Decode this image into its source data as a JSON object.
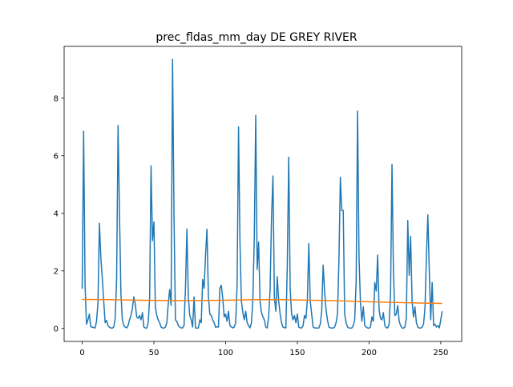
{
  "chart_data": {
    "type": "line",
    "title": "prec_fldas_mm_day DE GREY RIVER",
    "xlabel": "",
    "ylabel": "",
    "xlim": [
      -12.6,
      264.6
    ],
    "ylim": [
      -0.45,
      9.8
    ],
    "xticks": [
      0,
      50,
      100,
      150,
      200,
      250
    ],
    "yticks": [
      0,
      2,
      4,
      6,
      8
    ],
    "grid": false,
    "legend": "none",
    "series": [
      {
        "color": "#1f77b4",
        "points": [
          [
            0,
            1.38
          ],
          [
            1,
            6.85
          ],
          [
            2,
            1.5
          ],
          [
            3,
            0.15
          ],
          [
            4,
            0.3
          ],
          [
            5,
            0.5
          ],
          [
            6,
            0.06
          ],
          [
            7,
            0.05
          ],
          [
            8,
            0.03
          ],
          [
            9,
            0.02
          ],
          [
            10,
            0.25
          ],
          [
            11,
            0.9
          ],
          [
            12,
            3.65
          ],
          [
            13,
            2.45
          ],
          [
            14,
            1.75
          ],
          [
            15,
            0.95
          ],
          [
            16,
            0.2
          ],
          [
            17,
            0.28
          ],
          [
            18,
            0.1
          ],
          [
            19,
            0.04
          ],
          [
            20,
            0.02
          ],
          [
            21,
            0.01
          ],
          [
            22,
            0.05
          ],
          [
            23,
            0.35
          ],
          [
            24,
            1.7
          ],
          [
            25,
            7.05
          ],
          [
            26,
            4.0
          ],
          [
            27,
            1.2
          ],
          [
            28,
            0.3
          ],
          [
            29,
            0.1
          ],
          [
            30,
            0.05
          ],
          [
            31,
            0.02
          ],
          [
            32,
            0.1
          ],
          [
            33,
            0.3
          ],
          [
            34,
            0.45
          ],
          [
            35,
            0.7
          ],
          [
            36,
            1.1
          ],
          [
            37,
            0.85
          ],
          [
            38,
            0.4
          ],
          [
            39,
            0.35
          ],
          [
            40,
            0.45
          ],
          [
            41,
            0.3
          ],
          [
            42,
            0.55
          ],
          [
            43,
            0.05
          ],
          [
            44,
            0.02
          ],
          [
            45,
            0.01
          ],
          [
            46,
            0.2
          ],
          [
            47,
            1.0
          ],
          [
            48,
            5.65
          ],
          [
            49,
            3.05
          ],
          [
            50,
            3.7
          ],
          [
            51,
            0.75
          ],
          [
            52,
            0.45
          ],
          [
            53,
            0.3
          ],
          [
            54,
            0.2
          ],
          [
            55,
            0.05
          ],
          [
            56,
            0.02
          ],
          [
            57,
            0.01
          ],
          [
            58,
            0.05
          ],
          [
            59,
            0.2
          ],
          [
            60,
            0.85
          ],
          [
            61,
            1.35
          ],
          [
            62,
            0.8
          ],
          [
            63,
            9.35
          ],
          [
            64,
            4.0
          ],
          [
            65,
            0.3
          ],
          [
            66,
            0.25
          ],
          [
            67,
            0.1
          ],
          [
            68,
            0.05
          ],
          [
            69,
            0.02
          ],
          [
            70,
            0.02
          ],
          [
            71,
            0.1
          ],
          [
            72,
            1.4
          ],
          [
            73,
            3.45
          ],
          [
            74,
            1.1
          ],
          [
            75,
            0.45
          ],
          [
            76,
            0.3
          ],
          [
            77,
            0.05
          ],
          [
            78,
            1.1
          ],
          [
            79,
            0.02
          ],
          [
            80,
            0.01
          ],
          [
            81,
            0.02
          ],
          [
            82,
            0.3
          ],
          [
            83,
            0.2
          ],
          [
            84,
            1.7
          ],
          [
            85,
            1.4
          ],
          [
            86,
            2.55
          ],
          [
            87,
            3.45
          ],
          [
            88,
            1.1
          ],
          [
            89,
            0.5
          ],
          [
            90,
            0.45
          ],
          [
            91,
            0.3
          ],
          [
            92,
            0.2
          ],
          [
            93,
            0.04
          ],
          [
            94,
            0.06
          ],
          [
            95,
            0.05
          ],
          [
            96,
            1.4
          ],
          [
            97,
            1.5
          ],
          [
            98,
            1.05
          ],
          [
            99,
            0.4
          ],
          [
            100,
            0.5
          ],
          [
            101,
            0.25
          ],
          [
            102,
            0.6
          ],
          [
            103,
            0.1
          ],
          [
            104,
            0.05
          ],
          [
            105,
            0.02
          ],
          [
            106,
            0.05
          ],
          [
            107,
            0.2
          ],
          [
            108,
            1.5
          ],
          [
            109,
            7.0
          ],
          [
            110,
            3.0
          ],
          [
            111,
            0.95
          ],
          [
            112,
            0.55
          ],
          [
            113,
            0.3
          ],
          [
            114,
            0.6
          ],
          [
            115,
            0.2
          ],
          [
            116,
            0.1
          ],
          [
            117,
            0.02
          ],
          [
            118,
            0.2
          ],
          [
            119,
            1.0
          ],
          [
            120,
            3.2
          ],
          [
            121,
            7.4
          ],
          [
            122,
            2.05
          ],
          [
            123,
            3.0
          ],
          [
            124,
            0.95
          ],
          [
            125,
            0.55
          ],
          [
            126,
            0.4
          ],
          [
            127,
            0.3
          ],
          [
            128,
            0.05
          ],
          [
            129,
            0.02
          ],
          [
            130,
            0.4
          ],
          [
            131,
            1.35
          ],
          [
            132,
            3.85
          ],
          [
            133,
            5.3
          ],
          [
            134,
            1.1
          ],
          [
            135,
            0.6
          ],
          [
            136,
            1.8
          ],
          [
            137,
            0.95
          ],
          [
            138,
            0.5
          ],
          [
            139,
            0.2
          ],
          [
            140,
            0.05
          ],
          [
            141,
            0.03
          ],
          [
            142,
            0.02
          ],
          [
            143,
            2.2
          ],
          [
            144,
            5.95
          ],
          [
            145,
            1.4
          ],
          [
            146,
            0.5
          ],
          [
            147,
            0.3
          ],
          [
            148,
            0.45
          ],
          [
            149,
            0.2
          ],
          [
            150,
            0.5
          ],
          [
            151,
            0.05
          ],
          [
            152,
            0.02
          ],
          [
            153,
            0.02
          ],
          [
            154,
            0.1
          ],
          [
            155,
            0.45
          ],
          [
            156,
            0.35
          ],
          [
            157,
            1.0
          ],
          [
            158,
            2.95
          ],
          [
            159,
            0.95
          ],
          [
            160,
            0.5
          ],
          [
            161,
            0.05
          ],
          [
            162,
            0.02
          ],
          [
            163,
            0.02
          ],
          [
            164,
            0.01
          ],
          [
            165,
            0.02
          ],
          [
            166,
            0.15
          ],
          [
            167,
            0.6
          ],
          [
            168,
            2.2
          ],
          [
            169,
            1.3
          ],
          [
            170,
            0.65
          ],
          [
            171,
            0.3
          ],
          [
            172,
            0.05
          ],
          [
            173,
            0.02
          ],
          [
            174,
            0.02
          ],
          [
            175,
            0.01
          ],
          [
            176,
            0.05
          ],
          [
            177,
            0.2
          ],
          [
            178,
            0.5
          ],
          [
            179,
            2.35
          ],
          [
            180,
            5.25
          ],
          [
            181,
            4.1
          ],
          [
            182,
            4.1
          ],
          [
            183,
            0.5
          ],
          [
            184,
            0.2
          ],
          [
            185,
            0.05
          ],
          [
            186,
            0.02
          ],
          [
            187,
            0.01
          ],
          [
            188,
            0.02
          ],
          [
            189,
            0.1
          ],
          [
            190,
            0.3
          ],
          [
            191,
            1.65
          ],
          [
            192,
            7.55
          ],
          [
            193,
            2.5
          ],
          [
            194,
            0.9
          ],
          [
            195,
            0.25
          ],
          [
            196,
            0.75
          ],
          [
            197,
            0.1
          ],
          [
            198,
            0.05
          ],
          [
            199,
            0.02
          ],
          [
            200,
            0.01
          ],
          [
            201,
            0.05
          ],
          [
            202,
            0.4
          ],
          [
            203,
            0.25
          ],
          [
            204,
            1.6
          ],
          [
            205,
            1.3
          ],
          [
            206,
            2.55
          ],
          [
            207,
            0.65
          ],
          [
            208,
            0.35
          ],
          [
            209,
            0.3
          ],
          [
            210,
            0.55
          ],
          [
            211,
            0.1
          ],
          [
            212,
            0.03
          ],
          [
            213,
            0.02
          ],
          [
            214,
            0.15
          ],
          [
            215,
            1.2
          ],
          [
            216,
            5.7
          ],
          [
            217,
            2.0
          ],
          [
            218,
            0.45
          ],
          [
            219,
            0.5
          ],
          [
            220,
            0.8
          ],
          [
            221,
            0.25
          ],
          [
            222,
            0.1
          ],
          [
            223,
            0.02
          ],
          [
            224,
            0.01
          ],
          [
            225,
            0.05
          ],
          [
            226,
            0.35
          ],
          [
            227,
            3.75
          ],
          [
            228,
            1.85
          ],
          [
            229,
            3.2
          ],
          [
            230,
            0.95
          ],
          [
            231,
            0.4
          ],
          [
            232,
            0.75
          ],
          [
            233,
            0.2
          ],
          [
            234,
            0.05
          ],
          [
            235,
            0.02
          ],
          [
            236,
            0.01
          ],
          [
            237,
            0.05
          ],
          [
            238,
            0.15
          ],
          [
            239,
            0.7
          ],
          [
            240,
            2.5
          ],
          [
            241,
            3.95
          ],
          [
            242,
            2.0
          ],
          [
            243,
            0.3
          ],
          [
            244,
            1.6
          ],
          [
            245,
            0.1
          ],
          [
            246,
            0.15
          ],
          [
            247,
            0.05
          ],
          [
            248,
            0.1
          ],
          [
            249,
            0.02
          ],
          [
            250,
            0.3
          ],
          [
            251,
            0.6
          ]
        ]
      },
      {
        "color": "#ff7f0e",
        "points": [
          [
            0,
            1.01
          ],
          [
            20,
            1.0
          ],
          [
            40,
            0.98
          ],
          [
            60,
            0.97
          ],
          [
            80,
            0.97
          ],
          [
            100,
            0.98
          ],
          [
            120,
            1.0
          ],
          [
            140,
            1.0
          ],
          [
            160,
            0.98
          ],
          [
            180,
            0.96
          ],
          [
            200,
            0.93
          ],
          [
            220,
            0.9
          ],
          [
            240,
            0.88
          ],
          [
            251,
            0.87
          ]
        ]
      }
    ]
  }
}
